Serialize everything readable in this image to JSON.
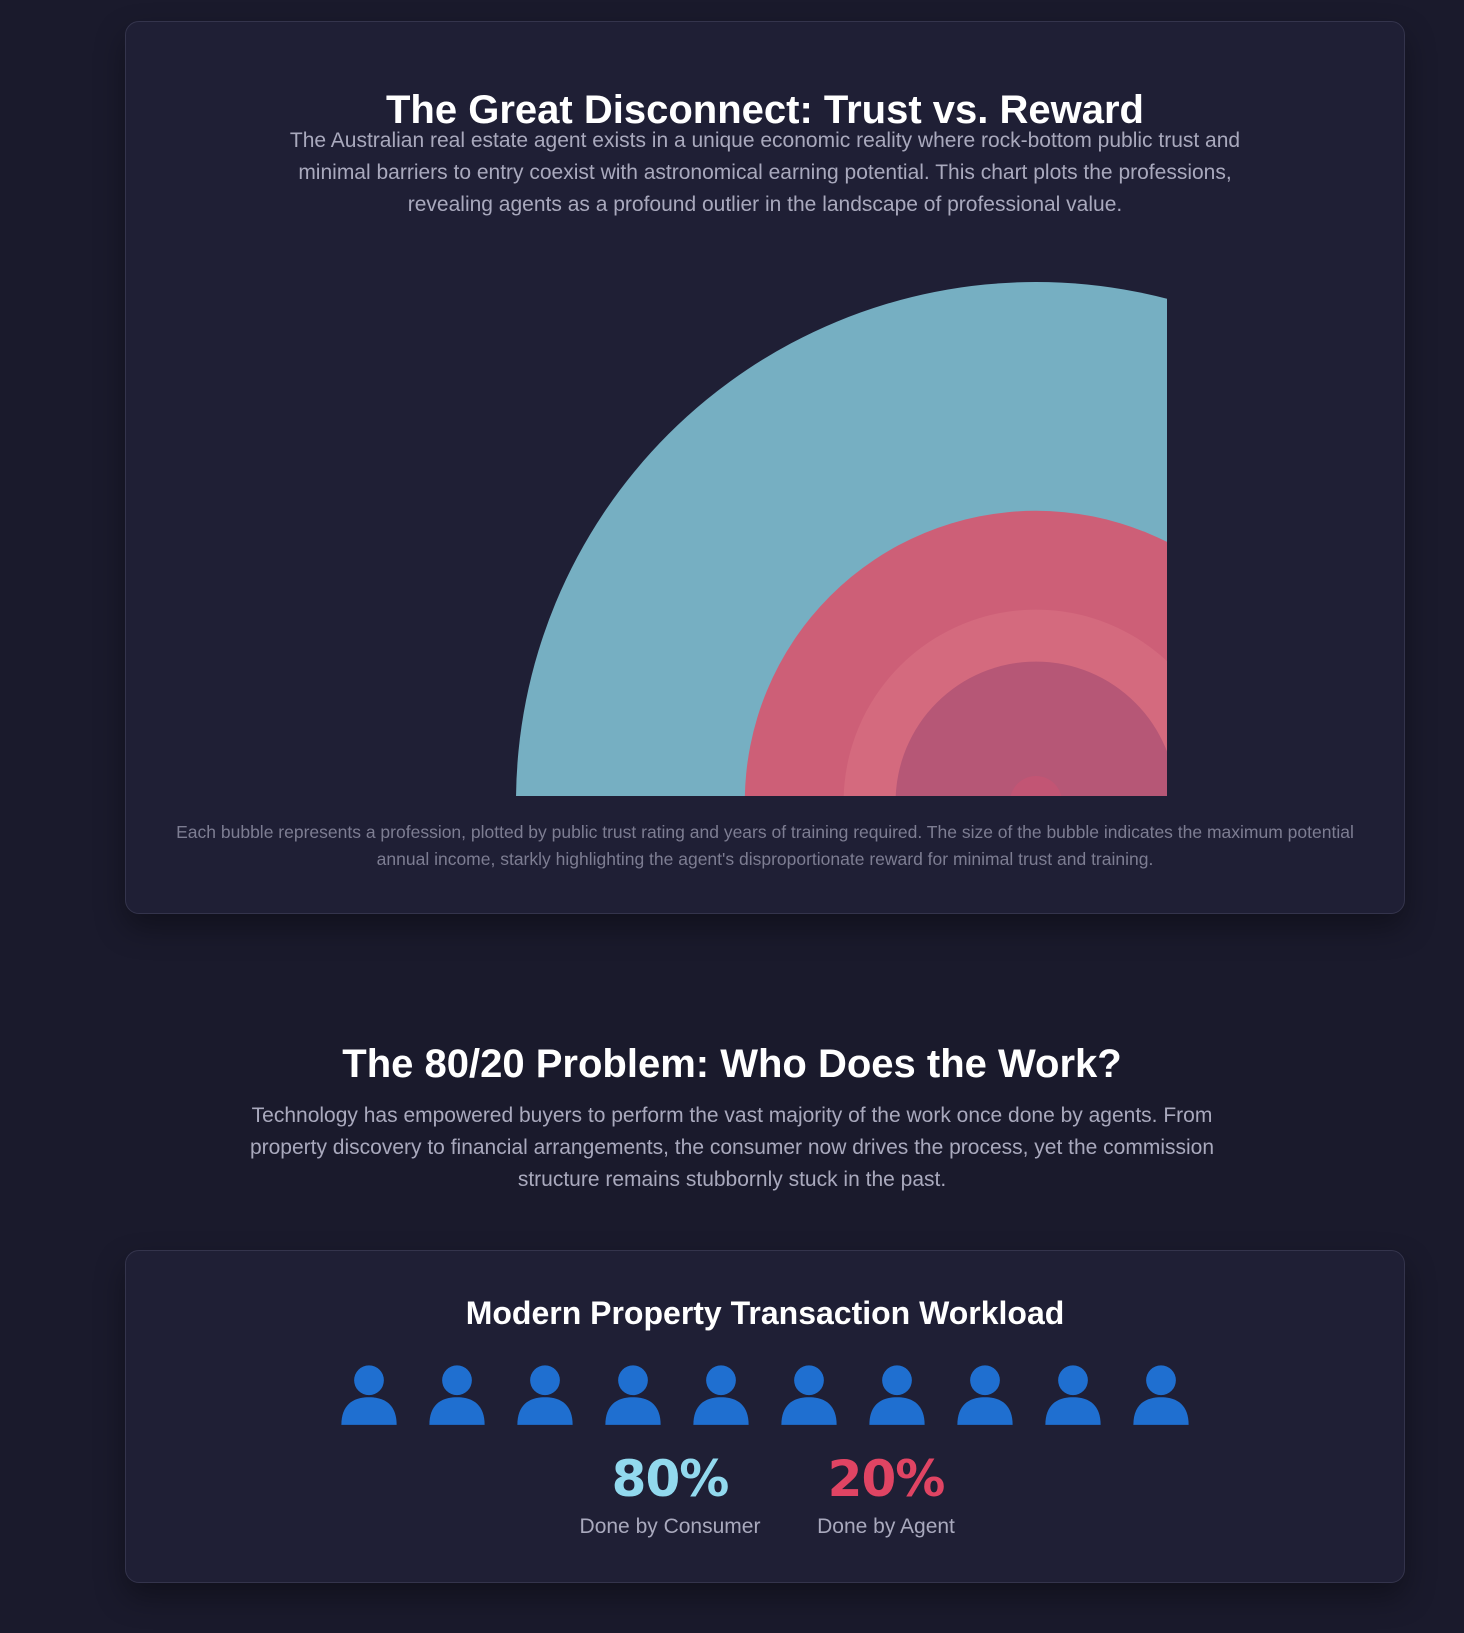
{
  "theme": {
    "background": "#1a1a2c",
    "card": "#1f1f35",
    "consumer_color": "#92d9ee",
    "agent_color": "#e04463",
    "person_icon_color": "#1f6fd0"
  },
  "section1": {
    "title": "The Great Disconnect: Trust vs. Reward",
    "description": "The Australian real estate agent exists in a unique economic reality where rock-bottom public trust and minimal barriers to entry coexist with astronomical earning potential. This chart plots the professions, revealing agents as a profound outlier in the landscape of professional value.",
    "note": "Each bubble represents a profession, plotted by public trust rating and years of training required. The size of the bubble indicates the maximum potential annual income, starkly highlighting the agent's disproportionate reward for minimal trust and training."
  },
  "chart_data": {
    "type": "bubble",
    "title": "",
    "xlabel": "",
    "ylabel": "",
    "grid": false,
    "legend": "none",
    "bubbles": [
      {
        "color": "#76afc2",
        "size": 1.0
      },
      {
        "color": "#cd5f77",
        "size": 0.56
      },
      {
        "color": "#d46a7e",
        "size": 0.37
      },
      {
        "color": "#b65776",
        "size": 0.27
      },
      {
        "color": "#c25574",
        "size": 0.05
      }
    ]
  },
  "section2": {
    "title": "The 80/20 Problem: Who Does the Work?",
    "description": "Technology has empowered buyers to perform the vast majority of the work once done by agents. From property discovery to financial arrangements, the consumer now drives the process, yet the commission structure remains stubbornly stuck in the past."
  },
  "workload": {
    "title": "Modern Property Transaction Workload",
    "people_count": 10,
    "person_icon": "person-icon",
    "consumer": {
      "value": "80%",
      "label": "Done by Consumer"
    },
    "agent": {
      "value": "20%",
      "label": "Done by Agent"
    }
  }
}
